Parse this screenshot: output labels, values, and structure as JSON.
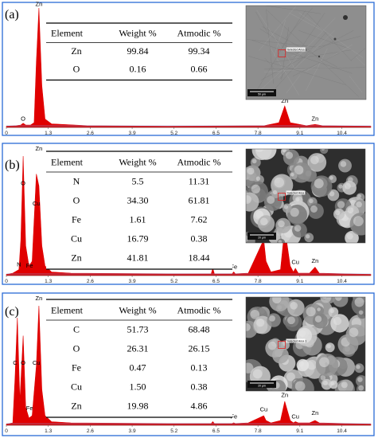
{
  "chart_data": [
    {
      "type": "line",
      "panel_label": "(a)",
      "x_ticks": [
        "0",
        "1.3",
        "2.6",
        "3.9",
        "5.2",
        "6.5",
        "7.8",
        "9.1",
        "10.4"
      ],
      "xlim": [
        0,
        11.3
      ],
      "ylim": [
        0,
        100
      ],
      "series_color": "#e00000",
      "x": [
        0,
        0.3,
        0.45,
        0.52,
        0.6,
        0.75,
        0.86,
        0.93,
        1.01,
        1.1,
        1.2,
        1.4,
        2.5,
        5,
        8,
        8.45,
        8.63,
        8.8,
        9.3,
        9.57,
        9.8,
        11.3
      ],
      "values": [
        1,
        1.5,
        2,
        3.5,
        2,
        2,
        4,
        55,
        100,
        35,
        7,
        3,
        1.5,
        1,
        1.5,
        4,
        18,
        4,
        1.5,
        2.5,
        1.5,
        1
      ],
      "peak_labels": [
        {
          "text": "O",
          "x": 0.52,
          "y": 5
        },
        {
          "text": "Zn",
          "x": 1.01,
          "y": 101
        },
        {
          "text": "Zn",
          "x": 8.63,
          "y": 20
        },
        {
          "text": "Zn",
          "x": 9.57,
          "y": 5
        }
      ],
      "table": {
        "headers": [
          "Element",
          "Weight %",
          "Atmodic %"
        ],
        "rows": [
          [
            "Zn",
            "99.84",
            "99.34"
          ],
          [
            "O",
            "0.16",
            "0.66"
          ]
        ]
      },
      "micrograph": {
        "tone": "light",
        "box_label": "Selected Area 1",
        "scale_label": "50 µm"
      }
    },
    {
      "type": "line",
      "panel_label": "(b)",
      "x_ticks": [
        "0",
        "1.3",
        "2.6",
        "3.9",
        "5.2",
        "6.5",
        "7.8",
        "9.1",
        "10.4"
      ],
      "xlim": [
        0,
        11.3
      ],
      "ylim": [
        0,
        100
      ],
      "series_color": "#e00000",
      "x": [
        0,
        0.2,
        0.39,
        0.45,
        0.52,
        0.6,
        0.7,
        0.8,
        0.93,
        1.01,
        1.1,
        1.2,
        1.4,
        2,
        5,
        6.35,
        6.4,
        6.45,
        7,
        7.05,
        7.1,
        7.5,
        7.98,
        8.05,
        8.2,
        8.5,
        8.63,
        8.8,
        8.9,
        8.96,
        9.05,
        9.4,
        9.57,
        9.7,
        11.3
      ],
      "values": [
        1,
        2,
        5,
        30,
        100,
        25,
        8,
        12,
        85,
        75,
        25,
        8,
        3,
        2,
        1.5,
        1.5,
        6,
        1.5,
        1.5,
        3,
        1.5,
        2,
        30,
        12,
        3,
        5,
        40,
        8,
        3,
        6,
        2,
        2,
        7,
        2,
        1
      ],
      "peak_labels": [
        {
          "text": "N",
          "x": 0.39,
          "y": 7
        },
        {
          "text": "O",
          "x": 0.52,
          "y": 75
        },
        {
          "text": "Fe",
          "x": 0.72,
          "y": 6
        },
        {
          "text": "Zn",
          "x": 1.01,
          "y": 104
        },
        {
          "text": "Cu",
          "x": 0.93,
          "y": 58
        },
        {
          "text": "Fe",
          "x": 6.4,
          "y": 9
        },
        {
          "text": "Fe",
          "x": 7.05,
          "y": 5
        },
        {
          "text": "Cu",
          "x": 7.98,
          "y": 34
        },
        {
          "text": "Zn",
          "x": 8.63,
          "y": 44
        },
        {
          "text": "Cu",
          "x": 8.96,
          "y": 9
        },
        {
          "text": "Zn",
          "x": 9.57,
          "y": 10
        }
      ],
      "table": {
        "headers": [
          "Element",
          "Weight %",
          "Atmodic %"
        ],
        "rows": [
          [
            "N",
            "5.5",
            "11.31"
          ],
          [
            "O",
            "34.30",
            "61.81"
          ],
          [
            "Fe",
            "1.61",
            "7.62"
          ],
          [
            "Cu",
            "16.79",
            "0.38"
          ],
          [
            "Zn",
            "41.81",
            "18.44"
          ]
        ]
      },
      "micrograph": {
        "tone": "dark",
        "box_label": "Selected Area 1",
        "scale_label": "20 µm"
      }
    },
    {
      "type": "line",
      "panel_label": "(c)",
      "x_ticks": [
        "0",
        "1.3",
        "2.6",
        "3.9",
        "5.2",
        "6.5",
        "7.8",
        "9.1",
        "10.4"
      ],
      "xlim": [
        0,
        11.3
      ],
      "ylim": [
        0,
        100
      ],
      "series_color": "#e00000",
      "x": [
        0,
        0.2,
        0.27,
        0.34,
        0.42,
        0.52,
        0.6,
        0.7,
        0.8,
        0.93,
        1.01,
        1.1,
        1.2,
        1.4,
        2,
        5,
        6.35,
        6.4,
        6.45,
        7,
        7.05,
        7.1,
        7.5,
        7.98,
        8.05,
        8.2,
        8.5,
        8.63,
        8.8,
        8.9,
        8.96,
        9.05,
        9.4,
        9.57,
        9.7,
        11.3
      ],
      "values": [
        1,
        2,
        40,
        90,
        20,
        75,
        15,
        6,
        8,
        50,
        100,
        30,
        8,
        3,
        2,
        1.5,
        1.5,
        3,
        1.5,
        1.5,
        2,
        1.5,
        2,
        8,
        4,
        2,
        4,
        20,
        4,
        2,
        3,
        2,
        2,
        4,
        2,
        1
      ],
      "peak_labels": [
        {
          "text": "C",
          "x": 0.27,
          "y": 50
        },
        {
          "text": "O",
          "x": 0.52,
          "y": 50
        },
        {
          "text": "Fe",
          "x": 0.72,
          "y": 12
        },
        {
          "text": "Zn",
          "x": 1.01,
          "y": 104
        },
        {
          "text": "Cu",
          "x": 0.93,
          "y": 50
        },
        {
          "text": "Fe",
          "x": 6.4,
          "y": 8
        },
        {
          "text": "Fe",
          "x": 7.05,
          "y": 5
        },
        {
          "text": "Cu",
          "x": 7.98,
          "y": 11
        },
        {
          "text": "Zn",
          "x": 8.63,
          "y": 23
        },
        {
          "text": "Cu",
          "x": 8.96,
          "y": 5
        },
        {
          "text": "Zn",
          "x": 9.57,
          "y": 8
        }
      ],
      "table": {
        "headers": [
          "Element",
          "Weight %",
          "Atmodic %"
        ],
        "rows": [
          [
            "C",
            "51.73",
            "68.48"
          ],
          [
            "O",
            "26.31",
            "26.15"
          ],
          [
            "Fe",
            "0.47",
            "0.13"
          ],
          [
            "Cu",
            "1.50",
            "0.38"
          ],
          [
            "Zn",
            "19.98",
            "4.86"
          ]
        ]
      },
      "micrograph": {
        "tone": "dark",
        "box_label": "Selected Area 1",
        "scale_label": "20 µm"
      }
    }
  ]
}
